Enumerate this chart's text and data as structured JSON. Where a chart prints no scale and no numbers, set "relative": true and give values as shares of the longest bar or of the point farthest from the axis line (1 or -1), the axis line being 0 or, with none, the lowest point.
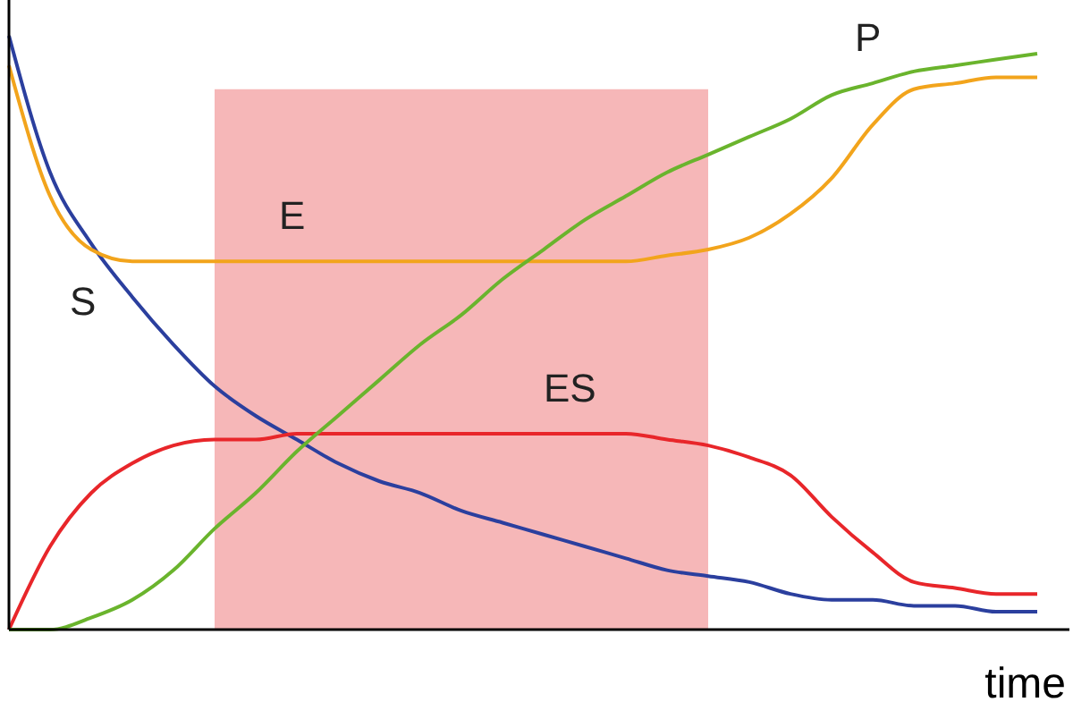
{
  "chart_data": {
    "type": "line",
    "relative": true,
    "xlabel": "time",
    "categories": [
      null,
      null,
      null,
      null,
      null,
      null,
      null,
      null,
      null,
      null,
      null,
      null,
      null,
      null,
      null,
      null,
      null,
      null,
      null,
      null,
      null,
      null,
      null,
      null,
      null,
      null
    ],
    "series": [
      {
        "name": "S",
        "color": "#2b3f9e",
        "values": [
          1,
          0.77,
          0.65,
          0.56,
          0.48,
          0.41,
          0.36,
          0.32,
          0.28,
          0.25,
          0.23,
          0.2,
          0.18,
          0.16,
          0.14,
          0.12,
          0.1,
          0.09,
          0.08,
          0.06,
          0.05,
          0.05,
          0.04,
          0.04,
          0.03,
          0.03
        ]
      },
      {
        "name": "E",
        "color": "#f2a41c",
        "values": [
          0.95,
          0.73,
          0.64,
          0.62,
          0.62,
          0.62,
          0.62,
          0.62,
          0.62,
          0.62,
          0.62,
          0.62,
          0.62,
          0.62,
          0.62,
          0.62,
          0.63,
          0.64,
          0.66,
          0.7,
          0.76,
          0.85,
          0.91,
          0.92,
          0.93,
          0.93
        ]
      },
      {
        "name": "ES",
        "color": "#e8262a",
        "values": [
          0,
          0.14,
          0.23,
          0.28,
          0.31,
          0.32,
          0.32,
          0.33,
          0.33,
          0.33,
          0.33,
          0.33,
          0.33,
          0.33,
          0.33,
          0.33,
          0.32,
          0.31,
          0.29,
          0.26,
          0.19,
          0.13,
          0.08,
          0.07,
          0.06,
          0.06
        ]
      },
      {
        "name": "P",
        "color": "#6ab42d",
        "values": [
          0,
          0,
          0.02,
          0.05,
          0.1,
          0.17,
          0.23,
          0.3,
          0.36,
          0.42,
          0.48,
          0.53,
          0.59,
          0.64,
          0.69,
          0.73,
          0.77,
          0.8,
          0.83,
          0.86,
          0.9,
          0.92,
          0.94,
          0.95,
          0.96,
          0.97
        ]
      }
    ],
    "marker": "none",
    "line_style": "solid"
  }
}
